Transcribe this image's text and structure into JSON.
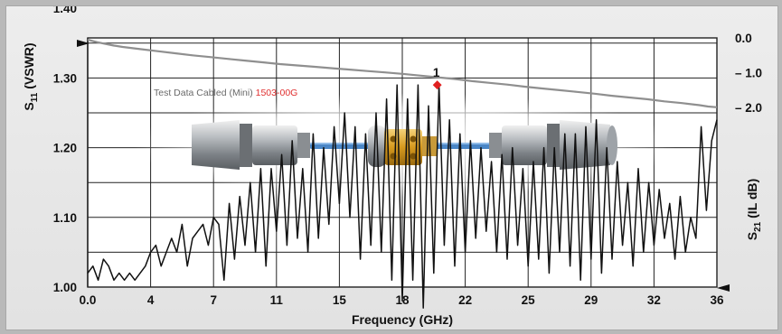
{
  "chart_data": {
    "type": "line",
    "xlabel": "Frequency (GHz)",
    "x_ticks": [
      "0.0",
      "4",
      "7",
      "11",
      "15",
      "18",
      "22",
      "25",
      "29",
      "32",
      "36"
    ],
    "xlim": [
      0,
      36
    ],
    "left_axis": {
      "label_main": "S",
      "label_sub": "11",
      "label_rest": " (VSWR)",
      "ticks": [
        "1.00",
        "1.10",
        "1.20",
        "1.30",
        "1.40"
      ],
      "ylim": [
        1.0,
        1.5
      ]
    },
    "right_axis": {
      "label_main": "S",
      "label_sub": "21",
      "label_rest": " (IL dB)",
      "ticks": [
        "0.0",
        "– 1.0",
        "– 2.0"
      ],
      "ylim": [
        0.0,
        -2.5
      ]
    },
    "annotation": {
      "prefix": "Test Data Cabled (Mini) ",
      "part": "1503-00G",
      "part_color": "#e03030"
    },
    "marker": {
      "label": "1",
      "x": 20.0,
      "y": 1.29,
      "color": "#e02020"
    },
    "series": [
      {
        "axis": "left",
        "color": "#111111",
        "x": [
          0.0,
          0.3,
          0.6,
          0.9,
          1.2,
          1.5,
          1.8,
          2.1,
          2.4,
          2.7,
          3.0,
          3.3,
          3.6,
          3.9,
          4.2,
          4.5,
          4.8,
          5.1,
          5.4,
          5.7,
          6.0,
          6.3,
          6.6,
          6.9,
          7.2,
          7.5,
          7.8,
          8.1,
          8.4,
          8.7,
          9.0,
          9.3,
          9.6,
          9.9,
          10.2,
          10.5,
          10.8,
          11.1,
          11.4,
          11.7,
          12.0,
          12.3,
          12.6,
          12.9,
          13.2,
          13.5,
          13.8,
          14.1,
          14.4,
          14.7,
          15.0,
          15.3,
          15.6,
          15.9,
          16.2,
          16.5,
          16.8,
          17.1,
          17.4,
          17.7,
          18.0,
          18.3,
          18.6,
          18.9,
          19.2,
          19.5,
          19.8,
          20.1,
          20.4,
          20.7,
          21.0,
          21.3,
          21.6,
          21.9,
          22.2,
          22.5,
          22.8,
          23.1,
          23.4,
          23.7,
          24.0,
          24.3,
          24.6,
          24.9,
          25.2,
          25.5,
          25.8,
          26.1,
          26.4,
          26.7,
          27.0,
          27.3,
          27.6,
          27.9,
          28.2,
          28.5,
          28.8,
          29.1,
          29.4,
          29.7,
          30.0,
          30.3,
          30.6,
          30.9,
          31.2,
          31.5,
          31.8,
          32.1,
          32.4,
          32.7,
          33.0,
          33.3,
          33.6,
          33.9,
          34.2,
          34.5,
          34.8,
          35.1,
          35.4,
          35.7,
          36.0
        ],
        "values": [
          1.02,
          1.03,
          1.01,
          1.04,
          1.03,
          1.01,
          1.02,
          1.01,
          1.02,
          1.01,
          1.02,
          1.03,
          1.05,
          1.06,
          1.03,
          1.05,
          1.07,
          1.05,
          1.09,
          1.03,
          1.07,
          1.08,
          1.09,
          1.06,
          1.1,
          1.09,
          1.01,
          1.12,
          1.04,
          1.13,
          1.06,
          1.15,
          1.05,
          1.17,
          1.03,
          1.17,
          1.08,
          1.19,
          1.06,
          1.21,
          1.07,
          1.17,
          1.05,
          1.22,
          1.07,
          1.2,
          1.09,
          1.23,
          1.12,
          1.25,
          1.1,
          1.23,
          1.04,
          1.22,
          1.06,
          1.25,
          1.05,
          1.27,
          1.01,
          1.29,
          0.98,
          1.27,
          1.01,
          1.29,
          0.97,
          1.26,
          1.02,
          1.29,
          1.06,
          1.24,
          1.03,
          1.22,
          1.05,
          1.21,
          1.07,
          1.2,
          1.08,
          1.18,
          1.05,
          1.19,
          1.04,
          1.2,
          1.06,
          1.17,
          1.03,
          1.18,
          1.04,
          1.2,
          1.02,
          1.2,
          1.05,
          1.22,
          1.03,
          1.22,
          1.01,
          1.23,
          1.04,
          1.24,
          1.02,
          1.2,
          1.04,
          1.18,
          1.06,
          1.15,
          1.03,
          1.17,
          1.05,
          1.15,
          1.06,
          1.14,
          1.07,
          1.12,
          1.04,
          1.13,
          1.05,
          1.1,
          1.07,
          1.23,
          1.11,
          1.21,
          1.24
        ]
      },
      {
        "axis": "right",
        "color": "#8f8f8f",
        "x": [
          0.0,
          0.5,
          1.0,
          1.5,
          2.0,
          3.0,
          4.0,
          5.0,
          6.0,
          7.0,
          8.0,
          9.0,
          10.0,
          11.0,
          12.0,
          13.0,
          14.0,
          15.0,
          16.0,
          17.0,
          18.0,
          19.0,
          20.0,
          21.0,
          22.0,
          23.0,
          24.0,
          25.0,
          26.0,
          27.0,
          28.0,
          29.0,
          30.0,
          31.0,
          32.0,
          33.0,
          34.0,
          35.0,
          35.5,
          36.0
        ],
        "values": [
          -0.05,
          -0.12,
          -0.17,
          -0.22,
          -0.26,
          -0.32,
          -0.38,
          -0.44,
          -0.5,
          -0.55,
          -0.6,
          -0.65,
          -0.7,
          -0.75,
          -0.79,
          -0.83,
          -0.87,
          -0.91,
          -0.95,
          -0.99,
          -1.03,
          -1.08,
          -1.13,
          -1.18,
          -1.24,
          -1.29,
          -1.34,
          -1.4,
          -1.45,
          -1.5,
          -1.55,
          -1.6,
          -1.66,
          -1.71,
          -1.76,
          -1.82,
          -1.87,
          -1.93,
          -1.97,
          -1.99
        ]
      }
    ],
    "grid": true
  }
}
